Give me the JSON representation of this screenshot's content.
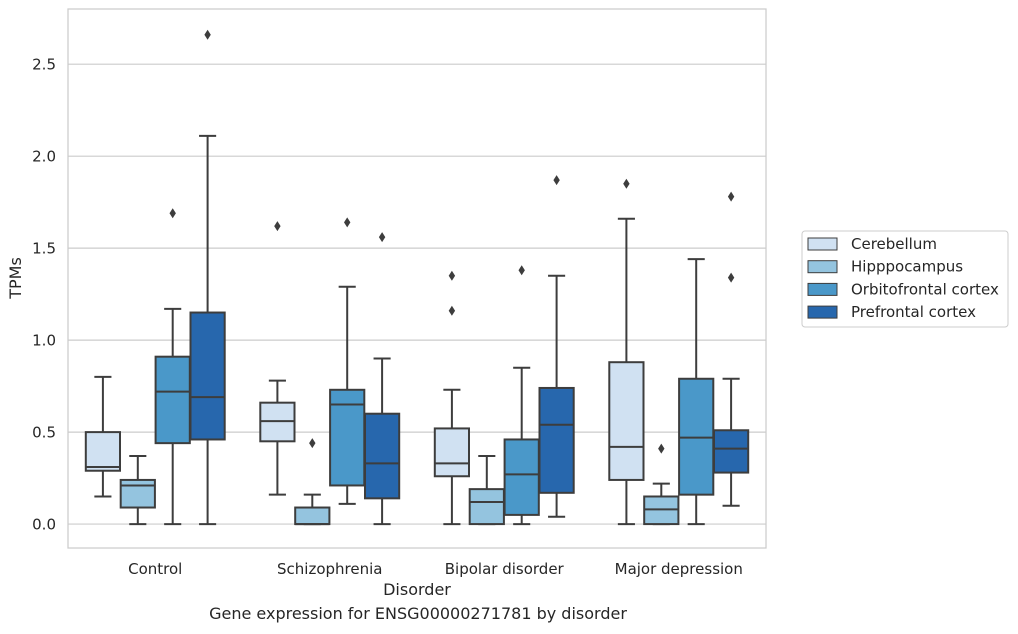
{
  "caption": "Gene expression for ENSG00000271781 by disorder",
  "chart_data": {
    "type": "boxplot",
    "xlabel": "Disorder",
    "ylabel": "TPMs",
    "ylim": [
      -0.13,
      2.8
    ],
    "yticks": [
      "0.0",
      "0.5",
      "1.0",
      "1.5",
      "2.0",
      "2.5"
    ],
    "ytick_values": [
      0.0,
      0.5,
      1.0,
      1.5,
      2.0,
      2.5
    ],
    "grid": true,
    "legend_position": "right",
    "categories": [
      "Control",
      "Schizophrenia",
      "Bipolar disorder",
      "Major depression"
    ],
    "series": [
      {
        "name": "Cerebellum",
        "color": "#d0e1f2",
        "boxes": [
          {
            "whislo": 0.15,
            "q1": 0.29,
            "med": 0.31,
            "q3": 0.5,
            "whishi": 0.8,
            "fliers": []
          },
          {
            "whislo": 0.16,
            "q1": 0.45,
            "med": 0.56,
            "q3": 0.66,
            "whishi": 0.78,
            "fliers": [
              1.62
            ]
          },
          {
            "whislo": 0.0,
            "q1": 0.26,
            "med": 0.33,
            "q3": 0.52,
            "whishi": 0.73,
            "fliers": [
              1.16,
              1.35
            ]
          },
          {
            "whislo": 0.0,
            "q1": 0.24,
            "med": 0.42,
            "q3": 0.88,
            "whishi": 1.66,
            "fliers": [
              1.85
            ]
          }
        ]
      },
      {
        "name": "Hipppocampus",
        "color": "#94c4df",
        "boxes": [
          {
            "whislo": 0.0,
            "q1": 0.09,
            "med": 0.21,
            "q3": 0.24,
            "whishi": 0.37,
            "fliers": []
          },
          {
            "whislo": 0.0,
            "q1": 0.0,
            "med": 0.0,
            "q3": 0.09,
            "whishi": 0.16,
            "fliers": [
              0.44
            ]
          },
          {
            "whislo": 0.0,
            "q1": 0.0,
            "med": 0.12,
            "q3": 0.19,
            "whishi": 0.37,
            "fliers": []
          },
          {
            "whislo": 0.0,
            "q1": 0.0,
            "med": 0.08,
            "q3": 0.15,
            "whishi": 0.22,
            "fliers": [
              0.41
            ]
          }
        ]
      },
      {
        "name": "Orbitofrontal cortex",
        "color": "#4a98c9",
        "boxes": [
          {
            "whislo": 0.0,
            "q1": 0.44,
            "med": 0.72,
            "q3": 0.91,
            "whishi": 1.17,
            "fliers": [
              1.69
            ]
          },
          {
            "whislo": 0.11,
            "q1": 0.21,
            "med": 0.65,
            "q3": 0.73,
            "whishi": 1.29,
            "fliers": [
              1.64
            ]
          },
          {
            "whislo": 0.0,
            "q1": 0.05,
            "med": 0.27,
            "q3": 0.46,
            "whishi": 0.85,
            "fliers": [
              1.38
            ]
          },
          {
            "whislo": 0.0,
            "q1": 0.16,
            "med": 0.47,
            "q3": 0.79,
            "whishi": 1.44,
            "fliers": []
          }
        ]
      },
      {
        "name": "Prefrontal cortex",
        "color": "#2767ad",
        "boxes": [
          {
            "whislo": 0.0,
            "q1": 0.46,
            "med": 0.69,
            "q3": 1.15,
            "whishi": 2.11,
            "fliers": [
              2.66
            ]
          },
          {
            "whislo": 0.0,
            "q1": 0.14,
            "med": 0.33,
            "q3": 0.6,
            "whishi": 0.9,
            "fliers": [
              1.56
            ]
          },
          {
            "whislo": 0.04,
            "q1": 0.17,
            "med": 0.54,
            "q3": 0.74,
            "whishi": 1.35,
            "fliers": [
              1.87
            ]
          },
          {
            "whislo": 0.1,
            "q1": 0.28,
            "med": 0.41,
            "q3": 0.51,
            "whishi": 0.79,
            "fliers": [
              1.34,
              1.78
            ]
          }
        ]
      }
    ]
  }
}
